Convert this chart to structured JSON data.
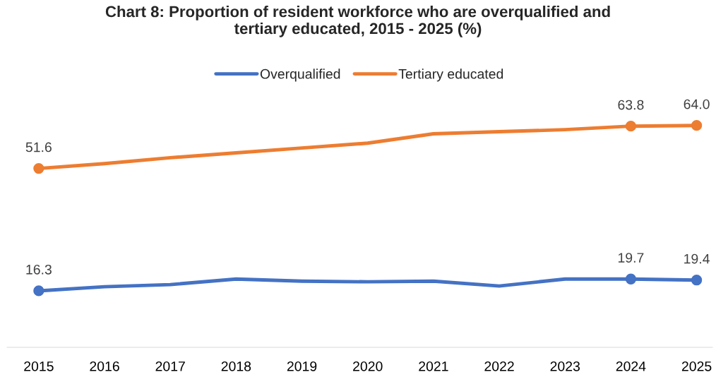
{
  "chart_data": {
    "type": "line",
    "title": "Chart 8: Proportion of resident workforce who are overqualified and tertiary educated, 2015 - 2025 (%)",
    "categories": [
      "2015",
      "2016",
      "2017",
      "2018",
      "2019",
      "2020",
      "2021",
      "2022",
      "2023",
      "2024",
      "2025"
    ],
    "series": [
      {
        "name": "Overqualified",
        "color": "#4472c4",
        "values": [
          16.3,
          17.5,
          18.1,
          19.7,
          19.1,
          18.9,
          19.1,
          17.7,
          19.7,
          19.7,
          19.4
        ],
        "value_labels": [
          "16.3",
          null,
          null,
          null,
          null,
          null,
          null,
          null,
          null,
          "19.7",
          "19.4"
        ]
      },
      {
        "name": "Tertiary educated",
        "color": "#ed7d31",
        "values": [
          51.6,
          53.0,
          54.7,
          56.1,
          57.5,
          58.9,
          61.6,
          62.2,
          62.8,
          63.8,
          64.0
        ],
        "value_labels": [
          "51.6",
          null,
          null,
          null,
          null,
          null,
          null,
          null,
          null,
          "63.8",
          "64.0"
        ]
      }
    ],
    "legend": "top",
    "grid": false,
    "tick_labels": "x"
  }
}
